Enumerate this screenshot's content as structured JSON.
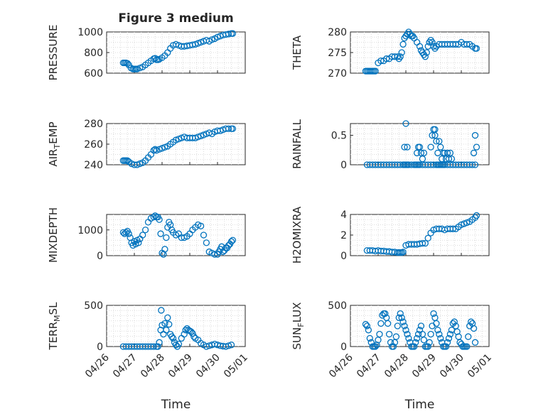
{
  "figure": {
    "marker_color": "#0072bd",
    "x_axis_label": "Time"
  },
  "chart_data": [
    {
      "type": "scatter",
      "title": "Figure 3 medium",
      "ylabel": "PRESSURE",
      "ylim": [
        600,
        1000
      ],
      "yticks": [
        600,
        800,
        1000
      ],
      "grid": true,
      "x_date_ticks": [
        "04/26",
        "04/27",
        "04/28",
        "04/29",
        "04/30",
        "05/01"
      ],
      "series": [
        {
          "x": [
            0.6,
            0.65,
            0.7,
            0.75,
            0.8,
            0.88,
            0.95,
            1.0,
            1.05,
            1.1,
            1.2,
            1.3,
            1.4,
            1.5,
            1.6,
            1.7,
            1.75,
            1.8,
            1.85,
            1.9,
            2.0,
            2.1,
            2.2,
            2.3,
            2.4,
            2.5,
            2.6,
            2.7,
            2.8,
            2.9,
            3.0,
            3.1,
            3.2,
            3.3,
            3.4,
            3.5,
            3.6,
            3.7,
            3.8,
            3.9,
            4.0,
            4.1,
            4.2,
            4.3,
            4.4,
            4.5,
            4.55
          ],
          "y": [
            700,
            700,
            700,
            695,
            680,
            650,
            640,
            640,
            640,
            640,
            650,
            660,
            680,
            700,
            720,
            740,
            745,
            730,
            730,
            735,
            750,
            770,
            800,
            840,
            870,
            880,
            870,
            860,
            860,
            865,
            870,
            875,
            880,
            890,
            900,
            910,
            920,
            910,
            925,
            935,
            950,
            960,
            970,
            975,
            980,
            985,
            985
          ]
        }
      ]
    },
    {
      "type": "scatter",
      "ylabel": "THETA",
      "ylim": [
        270,
        280
      ],
      "yticks": [
        270,
        275,
        280
      ],
      "grid": true,
      "x_date_ticks": [
        "04/26",
        "04/27",
        "04/28",
        "04/29",
        "04/30",
        "05/01"
      ],
      "series": [
        {
          "x": [
            0.55,
            0.6,
            0.65,
            0.7,
            0.75,
            0.8,
            0.85,
            0.9,
            1.0,
            1.1,
            1.2,
            1.3,
            1.4,
            1.5,
            1.6,
            1.7,
            1.75,
            1.8,
            1.85,
            1.9,
            1.95,
            2.0,
            2.05,
            2.1,
            2.15,
            2.2,
            2.25,
            2.3,
            2.4,
            2.5,
            2.55,
            2.6,
            2.65,
            2.7,
            2.75,
            2.8,
            2.85,
            2.9,
            2.95,
            3.0,
            3.05,
            3.1,
            3.2,
            3.3,
            3.4,
            3.5,
            3.6,
            3.7,
            3.8,
            3.9,
            4.0,
            4.1,
            4.2,
            4.3,
            4.4,
            4.5,
            4.55
          ],
          "y": [
            270.5,
            270.5,
            270.5,
            270.5,
            270.5,
            270.5,
            270.5,
            270.5,
            272.5,
            273.0,
            273.0,
            273.5,
            273.5,
            274.0,
            274.0,
            274.0,
            273.5,
            274.0,
            275.0,
            277.0,
            278.5,
            279.0,
            279.5,
            280.0,
            279.5,
            279.0,
            279.0,
            278.5,
            277.5,
            276.5,
            275.5,
            275.0,
            274.5,
            274.0,
            275.0,
            276.5,
            277.5,
            278.0,
            277.5,
            276.5,
            276.0,
            276.5,
            277.0,
            277.0,
            277.0,
            277.0,
            277.0,
            277.0,
            277.0,
            277.0,
            277.5,
            277.0,
            277.0,
            277.0,
            276.5,
            276.0,
            276.0
          ]
        }
      ]
    },
    {
      "type": "scatter",
      "ylabel": "AIR_TEMP",
      "ylim": [
        240,
        280
      ],
      "yticks": [
        240,
        260,
        280
      ],
      "grid": true,
      "x_date_ticks": [
        "04/26",
        "04/27",
        "04/28",
        "04/29",
        "04/30",
        "05/01"
      ],
      "series": [
        {
          "x": [
            0.6,
            0.65,
            0.7,
            0.75,
            0.8,
            0.9,
            1.0,
            1.1,
            1.2,
            1.3,
            1.4,
            1.5,
            1.6,
            1.7,
            1.75,
            1.8,
            1.9,
            2.0,
            2.1,
            2.2,
            2.3,
            2.4,
            2.5,
            2.6,
            2.7,
            2.8,
            2.9,
            3.0,
            3.1,
            3.2,
            3.3,
            3.4,
            3.5,
            3.6,
            3.7,
            3.8,
            3.9,
            4.0,
            4.1,
            4.2,
            4.3,
            4.4,
            4.5,
            4.55
          ],
          "y": [
            244,
            244,
            244,
            244,
            243,
            241,
            240,
            240,
            241,
            242,
            244,
            247,
            250,
            254,
            255,
            254,
            255,
            256,
            257,
            258,
            260,
            262,
            264,
            265,
            266,
            267,
            266,
            266,
            266,
            266,
            267,
            268,
            269,
            270,
            271,
            270,
            272,
            273,
            273,
            274,
            275,
            275,
            275,
            275
          ]
        }
      ]
    },
    {
      "type": "scatter",
      "ylabel": "RAINFALL",
      "ylim": [
        0,
        0.7
      ],
      "yticks": [
        0,
        0.5
      ],
      "grid": true,
      "x_date_ticks": [
        "04/26",
        "04/27",
        "04/28",
        "04/29",
        "04/30",
        "05/01"
      ],
      "series": [
        {
          "x": [
            0.6,
            0.7,
            0.8,
            0.9,
            1.0,
            1.1,
            1.2,
            1.3,
            1.4,
            1.5,
            1.6,
            1.7,
            1.8,
            1.9,
            1.95,
            2.0,
            2.05,
            2.1,
            2.2,
            2.3,
            2.35,
            2.4,
            2.45,
            2.5,
            2.6,
            2.7,
            2.8,
            2.9,
            3.0,
            3.1,
            3.15,
            3.2,
            3.25,
            3.3,
            3.35,
            3.4,
            3.5,
            3.6,
            3.7,
            3.8,
            3.9,
            4.0,
            4.1,
            4.2,
            4.3,
            4.4,
            4.5,
            1.95,
            2.0,
            2.05,
            2.4,
            2.45,
            2.5,
            2.55,
            2.6,
            2.65,
            2.9,
            2.95,
            3.0,
            3.05,
            3.05,
            3.1,
            3.15,
            3.2,
            3.25,
            3.3,
            3.35,
            3.4,
            3.45,
            3.5,
            3.55,
            3.6,
            3.65,
            4.45,
            4.5,
            4.55
          ],
          "y": [
            0,
            0,
            0,
            0,
            0,
            0,
            0,
            0,
            0,
            0,
            0,
            0,
            0,
            0,
            0,
            0,
            0,
            0,
            0,
            0,
            0,
            0,
            0,
            0,
            0,
            0,
            0,
            0,
            0,
            0,
            0,
            0,
            0,
            0,
            0,
            0,
            0,
            0,
            0,
            0,
            0,
            0,
            0,
            0,
            0,
            0,
            0,
            0.3,
            0.7,
            0.3,
            0.2,
            0.3,
            0.3,
            0.2,
            0.1,
            0.2,
            0.3,
            0.5,
            0.6,
            0.6,
            0.5,
            0.4,
            0.2,
            0.4,
            0.3,
            0.1,
            0.2,
            0.2,
            0.1,
            0.2,
            0.1,
            0.2,
            0.1,
            0.2,
            0.5,
            0.3
          ]
        }
      ]
    },
    {
      "type": "scatter",
      "ylabel": "MIXDEPTH",
      "ylim": [
        0,
        1600
      ],
      "yticks": [
        0,
        1000
      ],
      "grid": true,
      "x_date_ticks": [
        "04/26",
        "04/27",
        "04/28",
        "04/29",
        "04/30",
        "05/01"
      ],
      "series": [
        {
          "x": [
            0.6,
            0.65,
            0.7,
            0.75,
            0.8,
            0.85,
            0.9,
            0.95,
            1.0,
            1.05,
            1.1,
            1.15,
            1.2,
            1.3,
            1.4,
            1.5,
            1.6,
            1.7,
            1.75,
            1.8,
            1.85,
            1.9,
            1.95,
            2.0,
            2.05,
            2.1,
            2.15,
            2.2,
            2.25,
            2.3,
            2.35,
            2.4,
            2.5,
            2.6,
            2.7,
            2.8,
            2.9,
            3.0,
            3.1,
            3.2,
            3.3,
            3.4,
            3.5,
            3.6,
            3.7,
            3.8,
            3.9,
            4.0,
            4.05,
            4.1,
            4.15,
            4.2,
            4.25,
            4.3,
            4.35,
            4.4,
            4.45,
            4.5,
            4.55
          ],
          "y": [
            900,
            850,
            900,
            950,
            850,
            700,
            500,
            400,
            550,
            450,
            600,
            500,
            650,
            800,
            1000,
            1300,
            1450,
            1500,
            1550,
            1500,
            1500,
            1400,
            850,
            100,
            50,
            250,
            700,
            1100,
            1300,
            1200,
            1000,
            900,
            800,
            850,
            700,
            700,
            750,
            850,
            1000,
            1100,
            1200,
            1150,
            800,
            500,
            150,
            100,
            50,
            50,
            150,
            250,
            350,
            150,
            200,
            300,
            300,
            400,
            450,
            550,
            600
          ]
        }
      ]
    },
    {
      "type": "scatter",
      "ylabel": "H2OMIXRA",
      "ylim": [
        0,
        4
      ],
      "yticks": [
        0,
        2,
        4
      ],
      "grid": true,
      "x_date_ticks": [
        "04/26",
        "04/27",
        "04/28",
        "04/29",
        "04/30",
        "05/01"
      ],
      "series": [
        {
          "x": [
            0.6,
            0.7,
            0.8,
            0.9,
            1.0,
            1.1,
            1.2,
            1.3,
            1.4,
            1.5,
            1.6,
            1.7,
            1.75,
            1.8,
            1.85,
            1.9,
            2.0,
            2.1,
            2.2,
            2.3,
            2.4,
            2.5,
            2.6,
            2.7,
            2.8,
            2.9,
            3.0,
            3.1,
            3.2,
            3.3,
            3.4,
            3.5,
            3.6,
            3.7,
            3.8,
            3.9,
            4.0,
            4.1,
            4.2,
            4.3,
            4.4,
            4.5,
            4.55
          ],
          "y": [
            0.5,
            0.5,
            0.5,
            0.45,
            0.5,
            0.45,
            0.45,
            0.4,
            0.4,
            0.35,
            0.35,
            0.3,
            0.3,
            0.3,
            0.3,
            0.35,
            1.0,
            1.1,
            1.1,
            1.1,
            1.1,
            1.15,
            1.2,
            1.2,
            1.7,
            2.2,
            2.5,
            2.6,
            2.6,
            2.6,
            2.5,
            2.6,
            2.6,
            2.6,
            2.6,
            2.8,
            3.0,
            3.1,
            3.2,
            3.3,
            3.5,
            3.7,
            3.9
          ]
        }
      ]
    },
    {
      "type": "scatter",
      "ylabel": "TERR_MSL",
      "ylim": [
        0,
        500
      ],
      "yticks": [
        0,
        500
      ],
      "grid": true,
      "x_date_ticks": [
        "04/26",
        "04/27",
        "04/28",
        "04/29",
        "04/30",
        "05/01"
      ],
      "series": [
        {
          "x": [
            0.6,
            0.7,
            0.8,
            0.9,
            1.0,
            1.1,
            1.2,
            1.3,
            1.4,
            1.5,
            1.6,
            1.7,
            1.8,
            1.85,
            1.9,
            1.95,
            1.97,
            2.0,
            2.05,
            2.1,
            2.15,
            2.2,
            2.25,
            2.3,
            2.35,
            2.4,
            2.45,
            2.5,
            2.55,
            2.6,
            2.7,
            2.8,
            2.85,
            2.9,
            2.95,
            3.0,
            3.05,
            3.1,
            3.15,
            3.2,
            3.3,
            3.4,
            3.5,
            3.6,
            3.7,
            3.8,
            3.9,
            4.0,
            4.1,
            4.2,
            4.3,
            4.4,
            4.5
          ],
          "y": [
            0,
            0,
            0,
            0,
            0,
            0,
            0,
            0,
            0,
            0,
            0,
            0,
            0,
            0,
            50,
            200,
            440,
            260,
            150,
            280,
            200,
            350,
            270,
            150,
            120,
            100,
            50,
            20,
            0,
            30,
            100,
            150,
            200,
            220,
            200,
            190,
            180,
            160,
            120,
            100,
            80,
            40,
            20,
            0,
            10,
            20,
            30,
            20,
            10,
            5,
            0,
            10,
            20
          ]
        }
      ]
    },
    {
      "type": "scatter",
      "ylabel": "SUN_FLUX",
      "ylim": [
        0,
        500
      ],
      "yticks": [
        0,
        500
      ],
      "grid": true,
      "x_date_ticks": [
        "04/26",
        "04/27",
        "04/28",
        "04/29",
        "04/30",
        "05/01"
      ],
      "series": [
        {
          "x": [
            0.55,
            0.6,
            0.65,
            0.7,
            0.75,
            0.8,
            0.85,
            0.9,
            0.95,
            1.0,
            1.05,
            1.1,
            1.15,
            1.2,
            1.25,
            1.3,
            1.35,
            1.4,
            1.45,
            1.5,
            1.55,
            1.6,
            1.65,
            1.7,
            1.75,
            1.8,
            1.85,
            1.9,
            1.95,
            2.0,
            2.05,
            2.1,
            2.15,
            2.2,
            2.25,
            2.3,
            2.35,
            2.4,
            2.45,
            2.5,
            2.55,
            2.6,
            2.65,
            2.7,
            2.75,
            2.8,
            2.85,
            2.9,
            2.95,
            3.0,
            3.05,
            3.1,
            3.15,
            3.2,
            3.25,
            3.3,
            3.35,
            3.4,
            3.45,
            3.5,
            3.55,
            3.6,
            3.65,
            3.7,
            3.75,
            3.8,
            3.85,
            3.9,
            3.95,
            4.0,
            4.05,
            4.1,
            4.15,
            4.2,
            4.25,
            4.3,
            4.35,
            4.4,
            4.45,
            4.5
          ],
          "y": [
            270,
            250,
            200,
            100,
            50,
            0,
            0,
            0,
            20,
            80,
            150,
            280,
            380,
            400,
            400,
            350,
            280,
            150,
            50,
            0,
            0,
            50,
            120,
            250,
            350,
            400,
            350,
            300,
            250,
            200,
            150,
            100,
            50,
            0,
            0,
            0,
            50,
            100,
            150,
            200,
            250,
            150,
            80,
            0,
            0,
            0,
            50,
            150,
            250,
            400,
            350,
            280,
            200,
            150,
            100,
            50,
            0,
            0,
            0,
            50,
            100,
            150,
            200,
            280,
            300,
            250,
            180,
            120,
            50,
            30,
            0,
            0,
            0,
            0,
            120,
            250,
            300,
            280,
            220,
            50
          ]
        }
      ]
    }
  ]
}
